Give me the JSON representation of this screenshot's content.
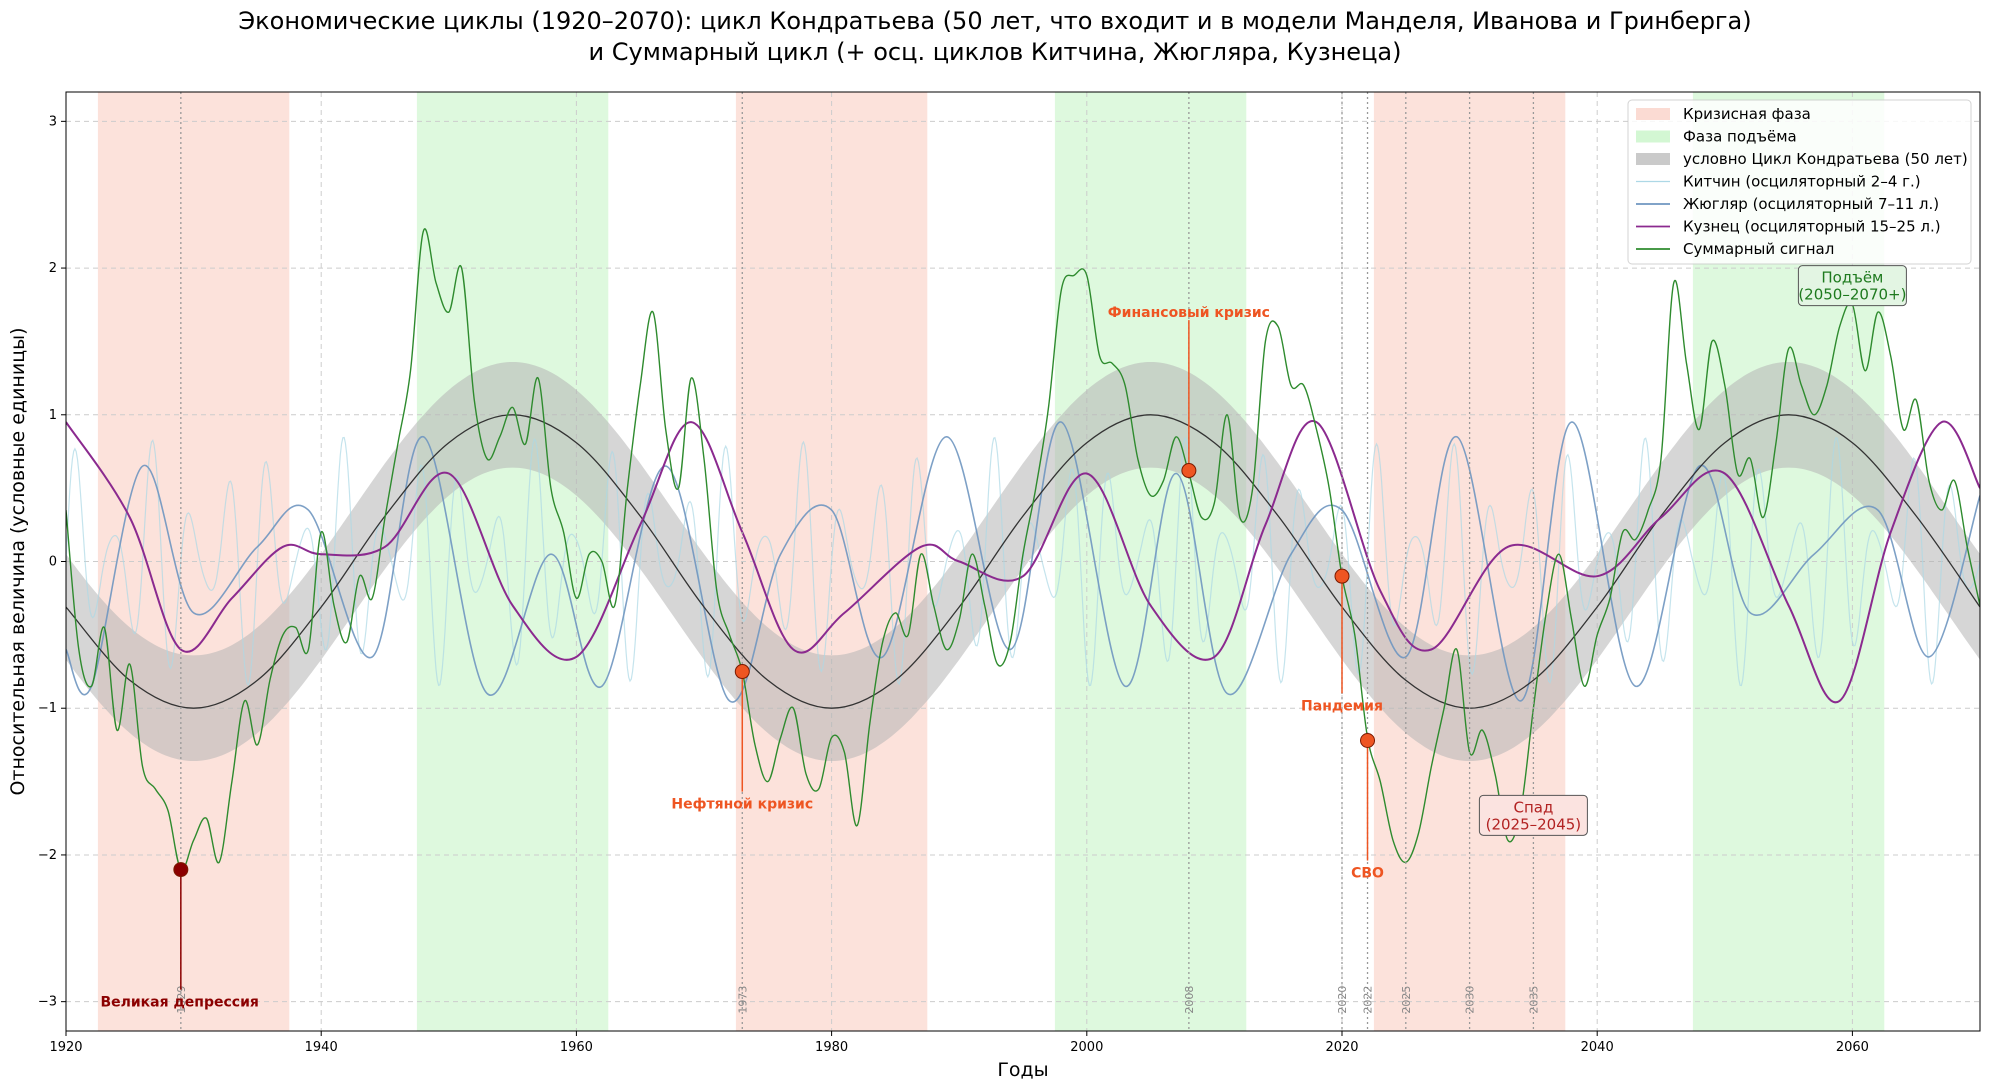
{
  "title_line1": "Экономические циклы (1920–2070): цикл Кондратьева (50 лет, что входит и в модели Манделя, Иванова и Гринберга)",
  "title_line2": "и Суммарный цикл (+ осц. циклов Китчина, Жюгляра, Кузнеца)",
  "chart_data": {
    "type": "line",
    "xlabel": "Годы",
    "ylabel": "Относительная величина (условные единицы)",
    "xlim": [
      1920,
      2070
    ],
    "ylim": [
      -3.2,
      3.2
    ],
    "xticks": [
      1920,
      1940,
      1960,
      1980,
      2000,
      2020,
      2040,
      2060
    ],
    "yticks": [
      -3,
      -2,
      -1,
      0,
      1,
      2,
      3
    ],
    "grid": true,
    "legend_position": "top-right",
    "colors": {
      "crisis": "#fad2c8",
      "growth": "#c8f5c8",
      "kondratiev_band": "#b4b4b4",
      "kondratiev_line": "#333333",
      "kitchin": "#add8e6",
      "juglar": "#6f96c0",
      "kuznets": "#8b2a8f",
      "sum": "#2e8b2e",
      "event": "#ee5522",
      "depression": "#8b0000"
    },
    "legend": [
      {
        "key": "crisis",
        "label": "Кризисная фаза"
      },
      {
        "key": "growth",
        "label": "Фаза подъёма"
      },
      {
        "key": "kondratiev",
        "label": "условно Цикл Кондратьева (50 лет)"
      },
      {
        "key": "kitchin",
        "label": "Китчин (осциляторный 2–4 г.)"
      },
      {
        "key": "juglar",
        "label": "Жюгляр (осциляторный 7–11 л.)"
      },
      {
        "key": "kuznets",
        "label": "Кузнец (осциляторный 15–25 л.)"
      },
      {
        "key": "sum",
        "label": "Суммарный сигнал"
      }
    ],
    "crisis_phases": [
      [
        1922.5,
        1937.5
      ],
      [
        1972.5,
        1987.5
      ],
      [
        2022.5,
        2037.5
      ]
    ],
    "growth_phases": [
      [
        1947.5,
        1962.5
      ],
      [
        1997.5,
        2012.5
      ],
      [
        2047.5,
        2062.5
      ]
    ],
    "kondratiev": {
      "period": 50,
      "peak_year": 1955,
      "amplitude": 1.0,
      "band_halfwidth": 0.36
    },
    "series": [
      {
        "name": "условно Цикл Кондратьева (50 лет)",
        "x": [
          1920,
          1925,
          1930,
          1935,
          1940,
          1945,
          1950,
          1955,
          1960,
          1965,
          1970,
          1975,
          1980,
          1985,
          1990,
          1995,
          2000,
          2005,
          2010,
          2015,
          2020,
          2025,
          2030,
          2035,
          2040,
          2045,
          2050,
          2055,
          2060,
          2065,
          2070
        ],
        "y": [
          -0.31,
          -0.81,
          -1.0,
          -0.81,
          -0.31,
          0.31,
          0.81,
          1.0,
          0.81,
          0.31,
          -0.31,
          -0.81,
          -1.0,
          -0.81,
          -0.31,
          0.31,
          0.81,
          1.0,
          0.81,
          0.31,
          -0.31,
          -0.81,
          -1.0,
          -0.81,
          -0.31,
          0.31,
          0.81,
          1.0,
          0.81,
          0.31,
          -0.31
        ]
      },
      {
        "name": "Кузнец (осциляторный 15–25 л.)",
        "x": [
          1920,
          1925,
          1929,
          1933,
          1937,
          1940,
          1945,
          1950,
          1955,
          1960,
          1965,
          1969,
          1973,
          1977,
          1981,
          1987,
          1990,
          1995,
          2000,
          2005,
          2010,
          2014,
          2018,
          2023,
          2027,
          2033,
          2040,
          2045,
          2050,
          2055,
          2059,
          2063,
          2067,
          2070
        ],
        "y": [
          0.95,
          0.3,
          -0.6,
          -0.25,
          0.1,
          0.05,
          0.1,
          0.6,
          -0.3,
          -0.65,
          0.25,
          0.95,
          0.2,
          -0.6,
          -0.35,
          0.1,
          0.0,
          -0.1,
          0.6,
          -0.3,
          -0.65,
          0.25,
          0.95,
          -0.2,
          -0.6,
          0.1,
          -0.1,
          0.3,
          0.6,
          -0.3,
          -0.95,
          0.2,
          0.95,
          0.5
        ]
      },
      {
        "name": "Жюгляр (осциляторный 7–11 л.)",
        "x": [
          1920,
          1922,
          1926,
          1930,
          1935,
          1939,
          1944,
          1948,
          1953,
          1958,
          1962,
          1967,
          1972,
          1976,
          1980,
          1984,
          1989,
          1994,
          1998,
          2003,
          2007,
          2011,
          2016,
          2020,
          2025,
          2029,
          2034,
          2038,
          2043,
          2048,
          2052,
          2057,
          2062,
          2066,
          2070
        ],
        "y": [
          -0.6,
          -0.85,
          0.65,
          -0.35,
          0.1,
          0.35,
          -0.65,
          0.85,
          -0.9,
          0.05,
          -0.85,
          0.65,
          -0.95,
          0.05,
          0.35,
          -0.65,
          0.85,
          -0.6,
          0.95,
          -0.85,
          0.6,
          -0.9,
          0.05,
          0.35,
          -0.65,
          0.85,
          -0.95,
          0.95,
          -0.85,
          0.65,
          -0.35,
          0.05,
          0.35,
          -0.65,
          0.45
        ]
      },
      {
        "name": "Китчин (осциляторный 2–4 г.)",
        "period_years": 3.0,
        "amplitude": 0.85
      },
      {
        "name": "Суммарный сигнал",
        "x": [
          1920,
          1921,
          1922,
          1923,
          1924,
          1925,
          1926,
          1927,
          1928,
          1929,
          1930,
          1931,
          1932,
          1933,
          1934,
          1935,
          1936,
          1937,
          1938,
          1939,
          1940,
          1941,
          1942,
          1943,
          1944,
          1945,
          1946,
          1947,
          1948,
          1949,
          1950,
          1951,
          1952,
          1953,
          1954,
          1955,
          1956,
          1957,
          1958,
          1959,
          1960,
          1961,
          1962,
          1963,
          1964,
          1965,
          1966,
          1967,
          1968,
          1969,
          1970,
          1971,
          1972,
          1973,
          1974,
          1975,
          1976,
          1977,
          1978,
          1979,
          1980,
          1981,
          1982,
          1983,
          1984,
          1985,
          1986,
          1987,
          1988,
          1989,
          1990,
          1991,
          1992,
          1993,
          1994,
          1995,
          1996,
          1997,
          1998,
          1999,
          2000,
          2001,
          2002,
          2003,
          2004,
          2005,
          2006,
          2007,
          2008,
          2009,
          2010,
          2011,
          2012,
          2013,
          2014,
          2015,
          2016,
          2017,
          2018,
          2019,
          2020,
          2021,
          2022,
          2023,
          2024,
          2025,
          2026,
          2027,
          2028,
          2029,
          2030,
          2031,
          2032,
          2033,
          2034,
          2035,
          2036,
          2037,
          2038,
          2039,
          2040,
          2041,
          2042,
          2043,
          2044,
          2045,
          2046,
          2047,
          2048,
          2049,
          2050,
          2051,
          2052,
          2053,
          2054,
          2055,
          2056,
          2057,
          2058,
          2059,
          2060,
          2061,
          2062,
          2063,
          2064,
          2065,
          2066,
          2067,
          2068,
          2069,
          2070
        ],
        "y": [
          0.35,
          -0.6,
          -0.85,
          -0.45,
          -1.15,
          -0.7,
          -1.4,
          -1.55,
          -1.7,
          -2.1,
          -1.9,
          -1.75,
          -2.05,
          -1.5,
          -0.95,
          -1.25,
          -0.8,
          -0.5,
          -0.45,
          -0.6,
          0.2,
          -0.3,
          -0.55,
          -0.1,
          -0.25,
          0.3,
          0.8,
          1.3,
          2.25,
          1.9,
          1.7,
          2.0,
          1.1,
          0.7,
          0.85,
          1.05,
          0.8,
          1.25,
          0.5,
          0.2,
          -0.25,
          0.05,
          0.0,
          -0.3,
          0.5,
          1.2,
          1.7,
          0.9,
          0.5,
          1.25,
          0.7,
          -0.2,
          -0.5,
          -0.75,
          -1.25,
          -1.5,
          -1.2,
          -1.0,
          -1.45,
          -1.55,
          -1.2,
          -1.3,
          -1.8,
          -1.1,
          -0.55,
          -0.35,
          -0.5,
          0.05,
          -0.3,
          -0.6,
          -0.4,
          0.05,
          -0.3,
          -0.7,
          -0.55,
          0.05,
          0.5,
          1.05,
          1.85,
          1.95,
          1.95,
          1.4,
          1.35,
          1.2,
          0.7,
          0.45,
          0.55,
          0.85,
          0.6,
          0.3,
          0.4,
          1.0,
          0.3,
          0.5,
          1.5,
          1.6,
          1.2,
          1.2,
          0.9,
          0.5,
          -0.1,
          -0.5,
          -1.2,
          -1.5,
          -1.9,
          -2.05,
          -1.85,
          -1.4,
          -1.0,
          -0.6,
          -1.3,
          -1.15,
          -1.45,
          -1.9,
          -1.7,
          -1.0,
          -0.35,
          0.05,
          -0.4,
          -0.85,
          -0.5,
          -0.25,
          0.2,
          0.15,
          0.35,
          0.7,
          1.9,
          1.35,
          0.9,
          1.5,
          1.2,
          0.6,
          0.7,
          0.3,
          0.8,
          1.45,
          1.2,
          1.0,
          1.2,
          1.6,
          1.75,
          1.3,
          1.7,
          1.4,
          0.9,
          1.1,
          0.55,
          0.35,
          0.55,
          0.1,
          -0.3
        ]
      }
    ],
    "events": [
      {
        "label": "Великая депрессия",
        "year": 1929,
        "value": -2.1,
        "label_value": -3.0,
        "color": "#8b0000"
      },
      {
        "label": "Нефтяной кризис",
        "year": 1973,
        "value": -0.75,
        "label_value": -1.65,
        "color": "#ee5522"
      },
      {
        "label": "Финансовый кризис",
        "year": 2008,
        "value": 0.62,
        "label_value": 1.7,
        "color": "#ee5522"
      },
      {
        "label": "Пандемия",
        "year": 2020,
        "value": -0.1,
        "label_value": -0.98,
        "color": "#ee5522"
      },
      {
        "label": "СВО",
        "year": 2022,
        "value": -1.22,
        "label_value": -2.12,
        "color": "#ee5522"
      }
    ],
    "vlines": [
      {
        "year": 1929,
        "label": "1929"
      },
      {
        "year": 1973,
        "label": "1973"
      },
      {
        "year": 2008,
        "label": "2008"
      },
      {
        "year": 2020,
        "label": "2020"
      },
      {
        "year": 2022,
        "label": "2022"
      },
      {
        "year": 2025,
        "label": "2025"
      },
      {
        "year": 2030,
        "label": "2030"
      },
      {
        "year": 2035,
        "label": "2035"
      }
    ],
    "boxes": [
      {
        "lines": [
          "Спад",
          "(2025–2045)"
        ],
        "year": 2035,
        "value": -1.73,
        "text_color": "#b22222",
        "bg": "#fbe3e0",
        "border": "#555555"
      },
      {
        "lines": [
          "Подъём",
          "(2050–2070+)"
        ],
        "year": 2060,
        "value": 1.88,
        "text_color": "#1e7a1e",
        "bg": "#e3f5e3",
        "border": "#555555"
      }
    ]
  }
}
